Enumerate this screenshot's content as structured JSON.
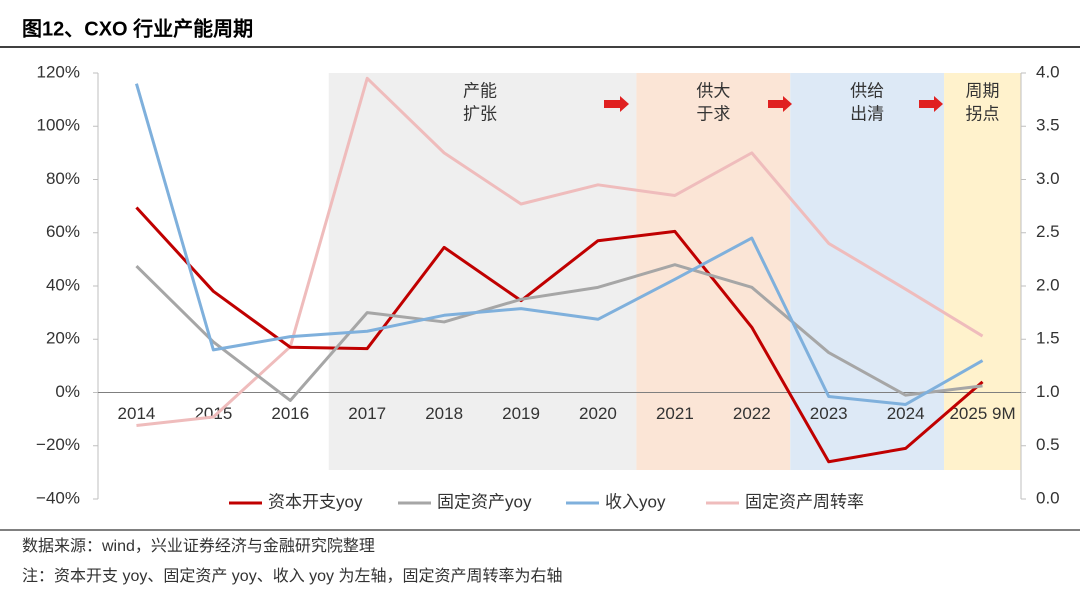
{
  "header": {
    "title": "图12、CXO 行业产能周期"
  },
  "chart_data": {
    "type": "line",
    "categories": [
      "2014",
      "2015",
      "2016",
      "2017",
      "2018",
      "2019",
      "2020",
      "2021",
      "2022",
      "2023",
      "2024",
      "2025 9M"
    ],
    "series": [
      {
        "name": "资本开支yoy",
        "color": "#c00000",
        "values": [
          69.5,
          38,
          17,
          16.5,
          54.5,
          34.5,
          57,
          60.5,
          24.5,
          -26,
          -21,
          4
        ]
      },
      {
        "name": "固定资产yoy",
        "color": "#a6a6a6",
        "values": [
          47.5,
          19,
          -3,
          30,
          26.5,
          35,
          39.5,
          48,
          39.5,
          15,
          -1,
          2.5
        ]
      },
      {
        "name": "收入yoy",
        "color": "#7fb0dc",
        "values": [
          116,
          16,
          21,
          23,
          29,
          31.5,
          27.5,
          42.5,
          58,
          -1.5,
          -4.5,
          12
        ]
      },
      {
        "name": "固定资产周转率",
        "color": "#efbcbc",
        "axis": "y2",
        "values": [
          0.69,
          0.77,
          1.43,
          3.95,
          3.25,
          2.77,
          2.95,
          2.85,
          3.25,
          2.4,
          1.97,
          1.53
        ]
      }
    ],
    "ylim": [
      -40,
      120
    ],
    "yticks": [
      {
        "value": -40,
        "label": "−40%"
      },
      {
        "value": -20,
        "label": "−20%"
      },
      {
        "value": 0,
        "label": "0%"
      },
      {
        "value": 20,
        "label": "20%"
      },
      {
        "value": 40,
        "label": "40%"
      },
      {
        "value": 60,
        "label": "60%"
      },
      {
        "value": 80,
        "label": "80%"
      },
      {
        "value": 100,
        "label": "100%"
      },
      {
        "value": 120,
        "label": "120%"
      }
    ],
    "y2lim": [
      0,
      4
    ],
    "y2ticks": [
      {
        "value": 0,
        "label": "0.0"
      },
      {
        "value": 0.5,
        "label": "0.5"
      },
      {
        "value": 1,
        "label": "1.0"
      },
      {
        "value": 1.5,
        "label": "1.5"
      },
      {
        "value": 2,
        "label": "2.0"
      },
      {
        "value": 2.5,
        "label": "2.5"
      },
      {
        "value": 3,
        "label": "3.0"
      },
      {
        "value": 3.5,
        "label": "3.5"
      },
      {
        "value": 4,
        "label": "4.0"
      }
    ],
    "phases": [
      {
        "lines": [
          "产能",
          "扩张"
        ],
        "color": "#efefef"
      },
      {
        "lines": [
          "供大",
          "于求"
        ],
        "color": "#fbe5d6"
      },
      {
        "lines": [
          "供给",
          "出清"
        ],
        "color": "#dde9f6"
      },
      {
        "lines": [
          "周期",
          "拐点"
        ],
        "color": "#fff2cc"
      }
    ]
  },
  "notes": [
    "数据来源：wind，兴业证券经济与金融研究院整理",
    "注：资本开支 yoy、固定资产 yoy、收入 yoy 为左轴，固定资产周转率为右轴"
  ]
}
